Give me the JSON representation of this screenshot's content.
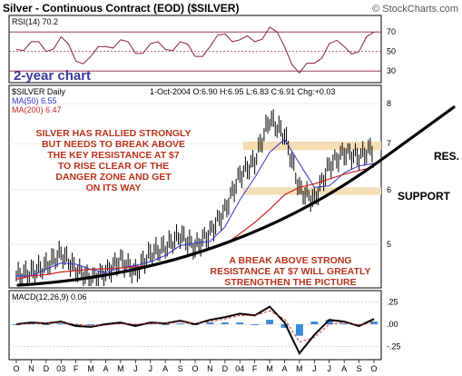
{
  "header": {
    "title": "Silver - Continuous Contract (EOD) ($SILVER)",
    "credit": "© StockCharts.com"
  },
  "rsi_panel": {
    "label": "RSI(14) 70.2",
    "ticks": [
      "70",
      "50",
      "30"
    ]
  },
  "price_panel": {
    "period_label": "2-year chart",
    "symbol_label": "$SILVER Daily",
    "ohlc": "1-Oct-2004 O:6.90 H:6.95 L:6.83 C:6.91 Chg:+0.03",
    "ma50_label": "MA(50) 6.55",
    "ma200_label": "MA(200) 6.47",
    "ticks": [
      "8",
      "7",
      "6",
      "5"
    ],
    "annotations": {
      "top_left": [
        "SILVER HAS RALLIED STRONGLY",
        "BUT NEEDS TO BREAK ABOVE",
        "THE KEY RESISTANCE AT $7",
        "TO RISE CLEAR OF THE",
        "DANGER ZONE AND GET",
        "ON ITS WAY"
      ],
      "bottom": [
        "A BREAK ABOVE STRONG",
        "RESISTANCE AT $7 WILL GREATLY",
        "STRENGTHEN THE PICTURE"
      ],
      "res": "RES.",
      "support": "SUPPORT"
    }
  },
  "macd_panel": {
    "label": "MACD(12,26,9) 0.06",
    "ticks": [
      ".25",
      ".00",
      "-.25"
    ]
  },
  "x_axis": {
    "labels": [
      "O",
      "N",
      "D",
      "03",
      "F",
      "M",
      "A",
      "M",
      "J",
      "J",
      "A",
      "S",
      "O",
      "N",
      "D",
      "04",
      "F",
      "M",
      "A",
      "M",
      "J",
      "J",
      "A",
      "S",
      "O"
    ]
  },
  "colors": {
    "rsi_line": "#8b1a4a",
    "rsi_band": "#8b1a4a",
    "ma50": "#3333cc",
    "ma200": "#cc2222",
    "price_bars": "#000000",
    "annotation": "#b8321a",
    "zone": "#f5deb3",
    "macd_hist": "#3a8ad8"
  },
  "chart_data": {
    "type": "line",
    "title": "Silver - Continuous Contract (EOD) ($SILVER)",
    "x": [
      "2002-10",
      "2002-11",
      "2002-12",
      "2003-01",
      "2003-02",
      "2003-03",
      "2003-04",
      "2003-05",
      "2003-06",
      "2003-07",
      "2003-08",
      "2003-09",
      "2003-10",
      "2003-11",
      "2003-12",
      "2004-01",
      "2004-02",
      "2004-03",
      "2004-04",
      "2004-05",
      "2004-06",
      "2004-07",
      "2004-08",
      "2004-09",
      "2004-10"
    ],
    "price_scale": "log",
    "price_ylim": [
      4.35,
      8.4
    ],
    "series": [
      {
        "name": "$SILVER Daily",
        "values": [
          4.5,
          4.55,
          4.65,
          4.85,
          4.6,
          4.45,
          4.55,
          4.75,
          4.55,
          4.85,
          4.95,
          5.15,
          4.95,
          5.2,
          5.6,
          6.3,
          6.6,
          7.6,
          7.2,
          6.0,
          5.8,
          6.5,
          6.8,
          6.7,
          6.91
        ]
      },
      {
        "name": "MA(50) 6.55",
        "values": [
          4.5,
          4.5,
          4.6,
          4.7,
          4.68,
          4.6,
          4.55,
          4.62,
          4.66,
          4.72,
          4.82,
          4.98,
          5.02,
          5.05,
          5.3,
          5.8,
          6.25,
          6.8,
          7.1,
          6.55,
          6.05,
          6.08,
          6.35,
          6.5,
          6.55
        ]
      },
      {
        "name": "MA(200) 6.47",
        "values": [
          4.45,
          4.5,
          4.52,
          4.56,
          4.58,
          4.6,
          4.61,
          4.62,
          4.64,
          4.66,
          4.72,
          4.78,
          4.86,
          4.92,
          5.0,
          5.18,
          5.38,
          5.62,
          5.9,
          6.05,
          6.12,
          6.22,
          6.32,
          6.4,
          6.47
        ]
      }
    ],
    "rsi_ylim": [
      20,
      85
    ],
    "rsi_values": [
      52,
      60,
      50,
      65,
      40,
      45,
      55,
      62,
      48,
      58,
      52,
      60,
      45,
      55,
      68,
      62,
      60,
      75,
      55,
      28,
      38,
      58,
      55,
      50,
      70
    ],
    "macd_ylim": [
      -0.38,
      0.36
    ],
    "macd_values": [
      0.0,
      0.02,
      0.01,
      0.03,
      -0.02,
      -0.03,
      0.0,
      0.02,
      -0.02,
      0.02,
      0.01,
      0.04,
      0.0,
      0.05,
      0.08,
      0.12,
      0.1,
      0.2,
      0.02,
      -0.33,
      -0.12,
      0.05,
      0.03,
      -0.02,
      0.06
    ],
    "signal_values": [
      0.0,
      0.01,
      0.01,
      0.02,
      0.0,
      -0.02,
      -0.01,
      0.01,
      0.0,
      0.01,
      0.01,
      0.03,
      0.01,
      0.03,
      0.06,
      0.1,
      0.1,
      0.15,
      0.06,
      -0.2,
      -0.15,
      0.0,
      0.02,
      -0.01,
      0.03
    ],
    "resistance_zone": [
      6.85,
      7.05
    ],
    "support_zone": [
      5.9,
      6.05
    ]
  }
}
